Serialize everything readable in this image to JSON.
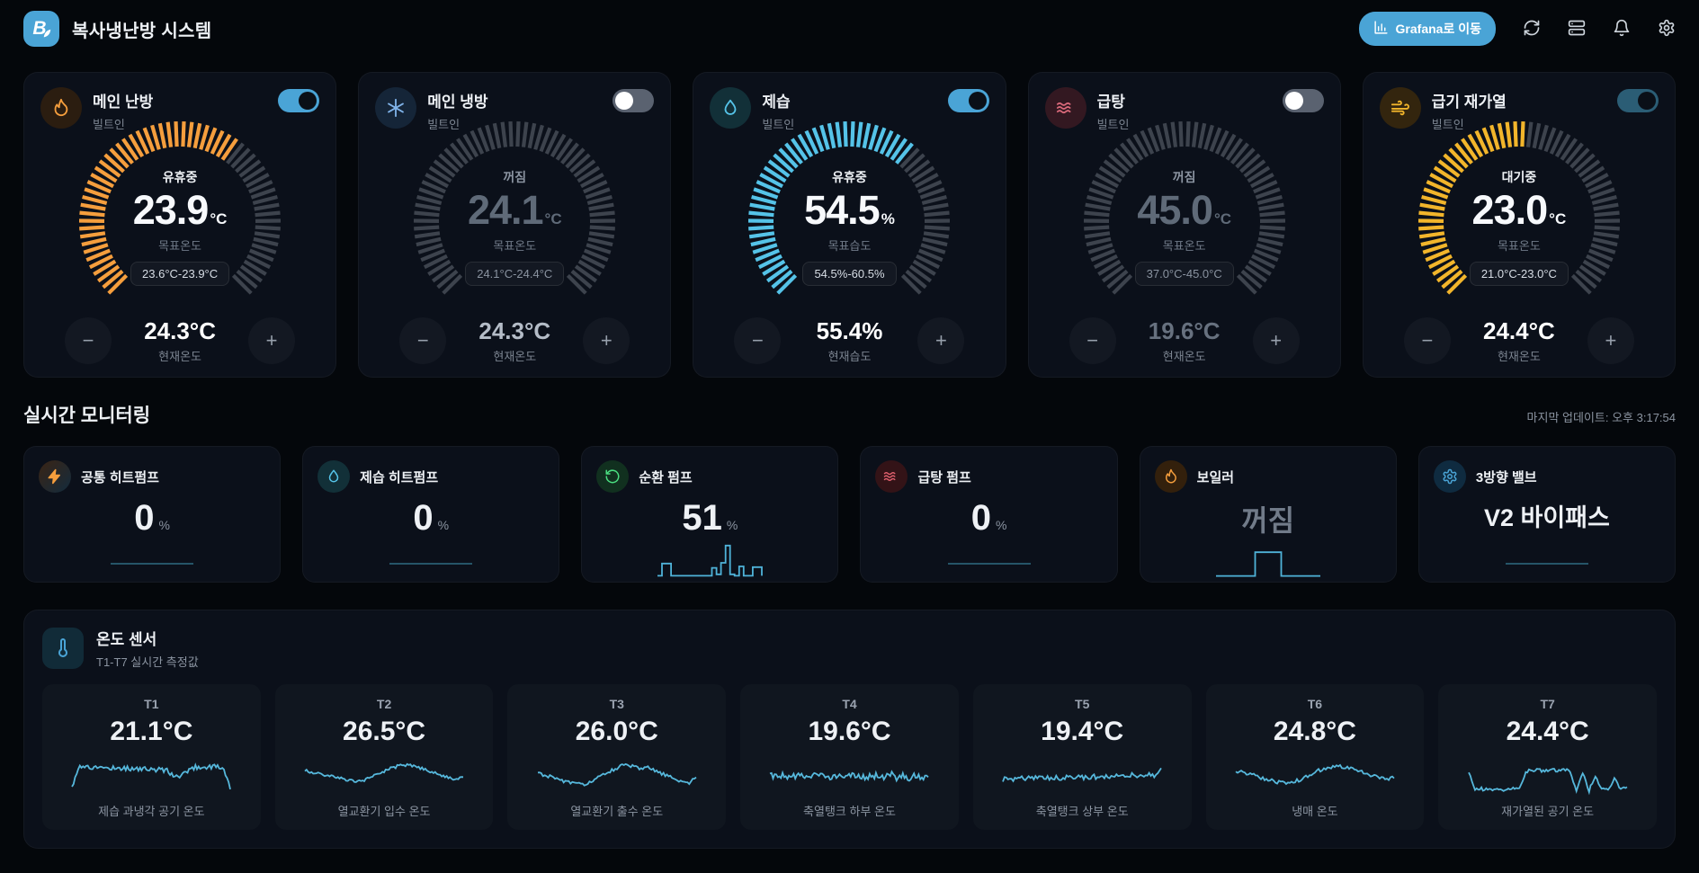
{
  "header": {
    "logo_letter": "B",
    "title": "복사냉난방 시스템",
    "grafana_button": "Grafana로 이동",
    "accent": "#4aa4d6"
  },
  "control_cards": [
    {
      "title": "메인 난방",
      "subtitle": "빌트인",
      "icon": "flame",
      "accent": "#f59e3d",
      "icon_bg": "#2b1d10",
      "toggle_on": true,
      "toggle_color": "#4aa4d6",
      "status": "유휴중",
      "status_color": "#eef1f5",
      "value": "23.9",
      "unit": "°C",
      "value_color": "#f7f9fc",
      "target_label": "목표온도",
      "range": "23.6°C-23.9°C",
      "range_color": "#d7dde5",
      "fill": 0.63,
      "current": "24.3°C",
      "current_color": "#ffffff",
      "current_label": "현재온도"
    },
    {
      "title": "메인 냉방",
      "subtitle": "빌트인",
      "icon": "snowflake",
      "accent": "#7fb2e8",
      "icon_bg": "#152538",
      "toggle_on": false,
      "toggle_color": "#4aa4d6",
      "status": "꺼짐",
      "status_color": "#8a93a0",
      "value": "24.1",
      "unit": "°C",
      "value_color": "#5f6a78",
      "target_label": "목표온도",
      "range": "24.1°C-24.4°C",
      "range_color": "#8a93a0",
      "fill": 0,
      "current": "24.3°C",
      "current_color": "#b4bcc7",
      "current_label": "현재온도"
    },
    {
      "title": "제습",
      "subtitle": "빌트인",
      "icon": "droplet",
      "accent": "#55c3e8",
      "icon_bg": "#123038",
      "toggle_on": true,
      "toggle_color": "#4aa4d6",
      "status": "유휴중",
      "status_color": "#eef1f5",
      "value": "54.5",
      "unit": "%",
      "value_color": "#f7f9fc",
      "target_label": "목표습도",
      "range": "54.5%-60.5%",
      "range_color": "#d7dde5",
      "fill": 0.66,
      "current": "55.4%",
      "current_color": "#ffffff",
      "current_label": "현재습도"
    },
    {
      "title": "급탕",
      "subtitle": "빌트인",
      "icon": "waves",
      "accent": "#d9697a",
      "icon_bg": "#331821",
      "toggle_on": false,
      "toggle_color": "#4aa4d6",
      "status": "꺼짐",
      "status_color": "#8a93a0",
      "value": "45.0",
      "unit": "°C",
      "value_color": "#5f6a78",
      "target_label": "목표온도",
      "range": "37.0°C-45.0°C",
      "range_color": "#8a93a0",
      "fill": 0,
      "current": "19.6°C",
      "current_color": "#67717f",
      "current_label": "현재온도"
    },
    {
      "title": "급기 재가열",
      "subtitle": "빌트인",
      "icon": "wind",
      "accent": "#f2b52b",
      "icon_bg": "#33250e",
      "toggle_on": true,
      "toggle_color": "#2b5d75",
      "status": "대기중",
      "status_color": "#eef1f5",
      "value": "23.0",
      "unit": "°C",
      "value_color": "#f7f9fc",
      "target_label": "목표온도",
      "range": "21.0°C-23.0°C",
      "range_color": "#d7dde5",
      "fill": 0.52,
      "current": "24.4°C",
      "current_color": "#ffffff",
      "current_label": "현재온도"
    }
  ],
  "monitoring": {
    "title": "실시간 모니터링",
    "last_update": "마지막 업데이트: 오후 3:17:54",
    "spark_active_color": "#4fb3d9",
    "spark_flat_color": "#2a5f73",
    "cards": [
      {
        "title": "공통 히트펌프",
        "icon": "zap",
        "icon_color": "#f59e3d",
        "icon_bg": "linear-gradient(135deg,#3a2414,#132b3d)",
        "value": "0",
        "unit": "%",
        "value_style": "num",
        "spark_style": "flat",
        "spark": [
          0,
          0
        ]
      },
      {
        "title": "제습 히트펌프",
        "icon": "droplet",
        "icon_color": "#55c3e8",
        "icon_bg": "#123038",
        "value": "0",
        "unit": "%",
        "value_style": "num",
        "spark_style": "flat",
        "spark": [
          0,
          0
        ]
      },
      {
        "title": "순환 펌프",
        "icon": "rotate",
        "icon_color": "#4ade80",
        "icon_bg": "#11301f",
        "value": "51",
        "unit": "%",
        "value_style": "num",
        "spark_style": "step",
        "spark": [
          4,
          38,
          38,
          4,
          4,
          4,
          4,
          4,
          4,
          4,
          4,
          4,
          26,
          8,
          40,
          88,
          8,
          4,
          30,
          4,
          4,
          28,
          28,
          4
        ]
      },
      {
        "title": "급탕 펌프",
        "icon": "waves",
        "icon_color": "#e0606e",
        "icon_bg": "#331317",
        "value": "0",
        "unit": "%",
        "value_style": "num",
        "spark_style": "flat",
        "spark": [
          0,
          0
        ]
      },
      {
        "title": "보일러",
        "icon": "flame",
        "icon_color": "#f59e3d",
        "icon_bg": "#33200c",
        "value": "꺼짐",
        "unit": "",
        "value_style": "dim",
        "spark_style": "step",
        "spark": [
          6,
          6,
          6,
          72,
          72,
          6,
          6,
          6,
          6
        ]
      },
      {
        "title": "3방향 밸브",
        "icon": "gear",
        "icon_color": "#4aa4d6",
        "icon_bg": "#0f2b40",
        "value": "V2 바이패스",
        "unit": "",
        "value_style": "text",
        "spark_style": "flat",
        "spark": [
          0,
          0
        ]
      }
    ]
  },
  "sensors": {
    "title": "온도 센서",
    "subtitle": "T1-T7 실시간 측정값",
    "spark_color": "#56b8dc",
    "tiles": [
      {
        "id": "T1",
        "value": "21.1°C",
        "caption": "제습 과냉각 공기 온도",
        "jitter": 7,
        "spark": [
          15,
          72,
          74,
          70,
          72,
          69,
          71,
          68,
          70,
          67,
          69,
          66,
          67,
          64,
          65,
          62,
          50,
          42,
          60,
          70,
          73,
          71,
          74,
          72,
          68,
          12
        ]
      },
      {
        "id": "T2",
        "value": "26.5°C",
        "caption": "열교환기 입수 온도",
        "jitter": 4,
        "spark": [
          62,
          58,
          54,
          50,
          46,
          42,
          38,
          34,
          32,
          36,
          44,
          52,
          60,
          68,
          74,
          78,
          76,
          72,
          66,
          60,
          54,
          48,
          42,
          38,
          46
        ]
      },
      {
        "id": "T3",
        "value": "26.0°C",
        "caption": "열교환기 출수 온도",
        "jitter": 5,
        "spark": [
          55,
          50,
          44,
          38,
          32,
          27,
          24,
          26,
          34,
          44,
          56,
          66,
          74,
          78,
          72,
          66,
          70,
          62,
          54,
          46,
          38,
          32,
          28,
          44
        ]
      },
      {
        "id": "T4",
        "value": "19.6°C",
        "caption": "축열탱크 하부 온도",
        "jitter": 9,
        "spark": [
          50,
          46,
          48,
          45,
          47,
          46,
          45,
          47,
          46,
          45,
          47,
          46,
          44,
          47,
          45,
          46,
          44,
          50,
          40,
          55,
          38,
          52,
          42,
          50,
          44,
          48
        ]
      },
      {
        "id": "T5",
        "value": "19.4°C",
        "caption": "축열탱크 상부 온도",
        "jitter": 7,
        "spark": [
          38,
          40,
          39,
          41,
          40,
          42,
          41,
          43,
          42,
          44,
          43,
          45,
          44,
          46,
          45,
          47,
          46,
          48,
          47,
          50,
          44,
          52,
          46,
          72
        ]
      },
      {
        "id": "T6",
        "value": "24.8°C",
        "caption": "냉매 온도",
        "jitter": 5,
        "spark": [
          62,
          58,
          52,
          46,
          40,
          34,
          30,
          27,
          30,
          38,
          48,
          58,
          66,
          72,
          75,
          72,
          68,
          62,
          55,
          48,
          42,
          38,
          45
        ]
      },
      {
        "id": "T7",
        "value": "24.4°C",
        "caption": "재가열된 공기 온도",
        "jitter": 5,
        "spark": [
          58,
          12,
          11,
          11,
          10,
          10,
          10,
          11,
          11,
          60,
          62,
          64,
          62,
          65,
          63,
          64,
          62,
          8,
          56,
          6,
          48,
          12,
          12,
          40,
          12,
          13
        ]
      }
    ]
  }
}
